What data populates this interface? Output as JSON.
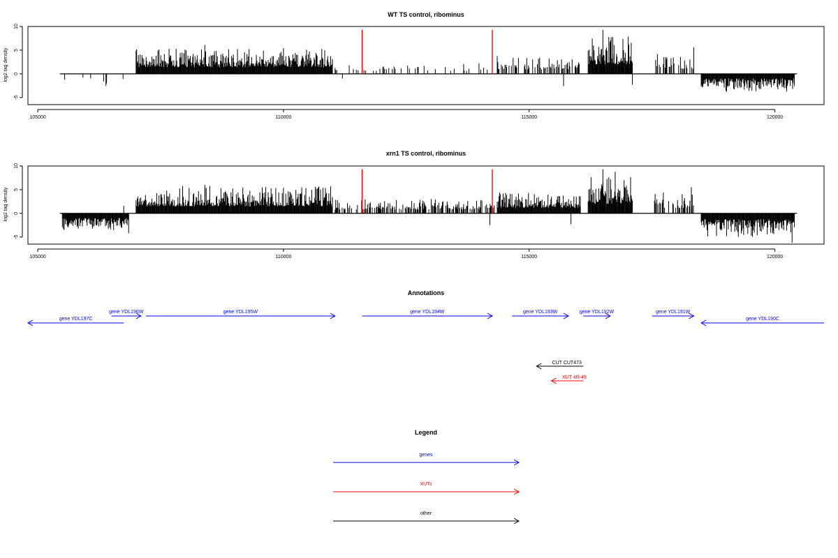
{
  "chart_data": [
    {
      "type": "bar",
      "title": "WT TS control, ribominus",
      "ylabel": "log2 tag density",
      "xlim": [
        104800,
        121000
      ],
      "ylim": [
        -6.5,
        10
      ],
      "xticks": [
        105000,
        110000,
        115000,
        120000
      ],
      "yticks": [
        -5,
        0,
        5,
        10
      ],
      "baseline": {
        "from": 105450,
        "to": 120450
      },
      "markers": {
        "color": "#ff0000",
        "x": [
          111600,
          114250
        ],
        "height": 9.3
      },
      "bar_color": "#000000",
      "segments": [
        {
          "from": 105500,
          "to": 106850,
          "density": 0.07,
          "sign": -1,
          "max": 2.6,
          "seed": 1
        },
        {
          "from": 107000,
          "to": 111000,
          "density": 1.0,
          "sign": 1,
          "max": 5.5,
          "seed": 2
        },
        {
          "from": 111050,
          "to": 114300,
          "density": 0.12,
          "sign": 1,
          "max": 2.4,
          "seed": 3
        },
        {
          "from": 114350,
          "to": 116050,
          "density": 0.4,
          "sign": 1,
          "max": 3.8,
          "seed": 4
        },
        {
          "from": 116200,
          "to": 117100,
          "density": 1.0,
          "sign": 1,
          "max": 8.0,
          "seed": 5
        },
        {
          "from": 117550,
          "to": 118350,
          "density": 0.35,
          "sign": 1,
          "max": 4.2,
          "seed": 6
        },
        {
          "from": 118500,
          "to": 120400,
          "density": 1.0,
          "sign": -1,
          "max": 3.8,
          "seed": 7
        }
      ],
      "spikes": [
        {
          "x": 108400,
          "y": 6.1
        },
        {
          "x": 109300,
          "y": 5.2
        },
        {
          "x": 116500,
          "y": 9.3
        },
        {
          "x": 116700,
          "y": 7.8
        },
        {
          "x": 118350,
          "y": 5.6
        },
        {
          "x": 117100,
          "y": -2.3
        },
        {
          "x": 115700,
          "y": -2.6
        },
        {
          "x": 111200,
          "y": -1.0
        }
      ]
    },
    {
      "type": "bar",
      "title": "xrn1 TS control, ribominus",
      "ylabel": "log2 tag density",
      "xlim": [
        104800,
        121000
      ],
      "ylim": [
        -6.5,
        10
      ],
      "xticks": [
        105000,
        110000,
        115000,
        120000
      ],
      "yticks": [
        -5,
        0,
        5,
        10
      ],
      "baseline": {
        "from": 105450,
        "to": 120450
      },
      "markers": {
        "color": "#ff0000",
        "x": [
          111600,
          114250
        ],
        "height": 9.3
      },
      "bar_color": "#000000",
      "segments": [
        {
          "from": 105500,
          "to": 106850,
          "density": 1.0,
          "sign": -1,
          "max": 3.8,
          "seed": 11
        },
        {
          "from": 107000,
          "to": 111000,
          "density": 1.0,
          "sign": 1,
          "max": 5.8,
          "seed": 12
        },
        {
          "from": 111050,
          "to": 114300,
          "density": 0.5,
          "sign": 1,
          "max": 3.2,
          "seed": 13
        },
        {
          "from": 114350,
          "to": 116050,
          "density": 1.0,
          "sign": 1,
          "max": 4.5,
          "seed": 14
        },
        {
          "from": 116200,
          "to": 117100,
          "density": 1.0,
          "sign": 1,
          "max": 8.0,
          "seed": 15
        },
        {
          "from": 117550,
          "to": 118350,
          "density": 0.5,
          "sign": 1,
          "max": 4.5,
          "seed": 16
        },
        {
          "from": 118500,
          "to": 120400,
          "density": 1.0,
          "sign": -1,
          "max": 5.0,
          "seed": 17
        }
      ],
      "spikes": [
        {
          "x": 108400,
          "y": 6.0
        },
        {
          "x": 116500,
          "y": 9.3
        },
        {
          "x": 116750,
          "y": 8.8
        },
        {
          "x": 118300,
          "y": 5.5
        },
        {
          "x": 106750,
          "y": 1.6
        },
        {
          "x": 106850,
          "y": -4.2
        },
        {
          "x": 120350,
          "y": -6.2
        },
        {
          "x": 114200,
          "y": -2.5
        },
        {
          "x": 115850,
          "y": -2.3
        }
      ]
    }
  ],
  "annotations": {
    "title": "Annotations",
    "genes": [
      {
        "label": "gene YDL197C",
        "from": 106750,
        "to": 104800,
        "row": 1,
        "color": "#0000ff"
      },
      {
        "label": "gene YDL196W",
        "from": 106500,
        "to": 107100,
        "row": 0,
        "color": "#0000ff"
      },
      {
        "label": "gene YDL195W",
        "from": 107200,
        "to": 111050,
        "row": 0,
        "color": "#0000ff"
      },
      {
        "label": "gene YDL194W",
        "from": 111600,
        "to": 114250,
        "row": 0,
        "color": "#0000ff"
      },
      {
        "label": "gene YDL193W",
        "from": 114650,
        "to": 115800,
        "row": 0,
        "color": "#0000ff"
      },
      {
        "label": "gene YDL192W",
        "from": 116100,
        "to": 116650,
        "row": 0,
        "color": "#0000ff"
      },
      {
        "label": "gene YDL191W",
        "from": 117500,
        "to": 118350,
        "row": 0,
        "color": "#0000ff"
      },
      {
        "label": "gene YDL190C",
        "from": 121000,
        "to": 118500,
        "row": 1,
        "color": "#0000ff"
      }
    ],
    "other": [
      {
        "label": "CUT CUT473",
        "from": 116100,
        "to": 115150,
        "color": "#000000"
      },
      {
        "label": "XUT 4R-45",
        "from": 116100,
        "to": 115450,
        "color": "#ff0000"
      }
    ]
  },
  "legend": {
    "title": "Legend",
    "items": [
      {
        "label": "genes",
        "color": "#0000ff"
      },
      {
        "label": "XUTs",
        "color": "#ff0000"
      },
      {
        "label": "other",
        "color": "#000000"
      }
    ]
  }
}
